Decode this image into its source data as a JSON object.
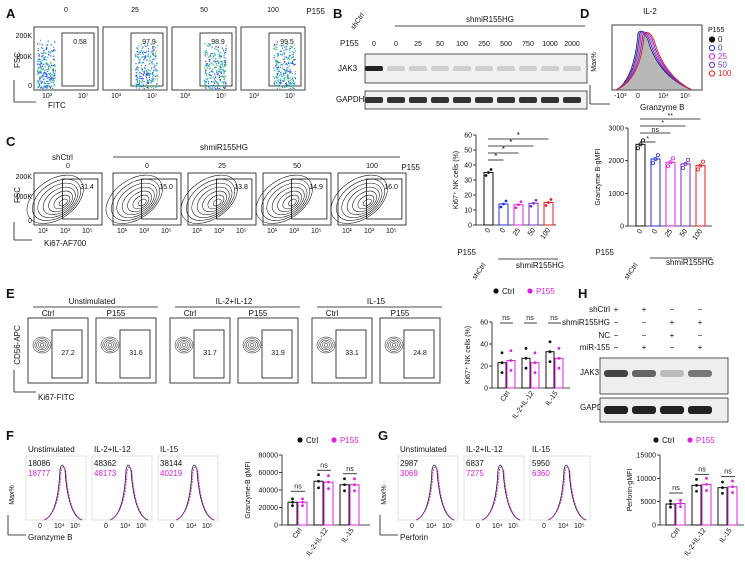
{
  "panel_labels": [
    "A",
    "B",
    "C",
    "D",
    "E",
    "F",
    "G",
    "H"
  ],
  "panelA": {
    "group_label": "P155",
    "doses": [
      "0",
      "25",
      "50",
      "100"
    ],
    "percents": [
      "0.58",
      "97.9",
      "98.9",
      "99.5"
    ],
    "y_ticks": [
      "200K",
      "100K",
      "0"
    ],
    "x_ticks": [
      "10³",
      "10⁷"
    ],
    "ylabel": "FSC",
    "xlabel": "FITC"
  },
  "panelB": {
    "shctrl": "shCtrl",
    "shmir": "shmiR155HG",
    "p155_label": "P155",
    "doses": [
      "0",
      "0",
      "25",
      "50",
      "100",
      "250",
      "500",
      "750",
      "1000",
      "2000"
    ],
    "rows": [
      "JAK3",
      "GAPDH"
    ]
  },
  "panelC": {
    "shctrl": "shCtrl",
    "shmir": "shmiR155HG",
    "p155_label": "P155",
    "doses": [
      "0",
      "0",
      "25",
      "50",
      "100"
    ],
    "percents": [
      "31.4",
      "15.0",
      "13.8",
      "14.9",
      "16.0"
    ],
    "ylabel": "FSC",
    "xlabel": "Ki67-AF700",
    "y_ticks": [
      "200K",
      "100K",
      "0"
    ],
    "x_ticks": [
      "10¹",
      "10³",
      "10⁵"
    ]
  },
  "panelD": {
    "title": "IL-2",
    "legend_title": "P155",
    "legend": [
      "0",
      "0",
      "25",
      "50",
      "100"
    ],
    "legend_colors": [
      "#111111",
      "#2233dd",
      "#e020e0",
      "#7030c0",
      "#e02020"
    ],
    "ylabel": "Max%",
    "xlabel": "Granzyme B",
    "hist_x_ticks": [
      "-10³",
      "0",
      "10⁴",
      "10⁵"
    ],
    "hist_y_ticks": [
      "100",
      "80",
      "60",
      "40",
      "20",
      "0"
    ]
  },
  "panelE": {
    "conditions": [
      "Unstimulated",
      "IL-2+IL-12",
      "IL-15"
    ],
    "sub": [
      "Ctrl",
      "P155"
    ],
    "percents": [
      "27.2",
      "31.6",
      "31.7",
      "31.9",
      "33.1",
      "24.8"
    ],
    "ylabel": "CD56-APC",
    "xlabel": "Ki67-FITC",
    "legend": [
      "Ctrl",
      "P155"
    ]
  },
  "panelF": {
    "conditions": [
      "Unstimulated",
      "IL-2+IL-12",
      "IL-15"
    ],
    "values_ctrl": [
      "18086",
      "48362",
      "38144"
    ],
    "values_p155": [
      "18777",
      "48173",
      "40219"
    ],
    "ylabel": "Max%",
    "xlabel": "Granzyme B",
    "x_ticks": [
      "0",
      "10⁴",
      "10⁵"
    ],
    "legend": [
      "Ctrl",
      "P155"
    ]
  },
  "panelG": {
    "conditions": [
      "Unstimulated",
      "IL-2+IL-12",
      "IL-15"
    ],
    "values_ctrl": [
      "2987",
      "6837",
      "5950"
    ],
    "values_p155": [
      "3069",
      "7275",
      "6360"
    ],
    "ylabel": "Max%",
    "xlabel": "Perforin",
    "x_ticks": [
      "0",
      "10⁴",
      "10⁵"
    ],
    "legend": [
      "Ctrl",
      "P155"
    ]
  },
  "panelH": {
    "row_labels": [
      "shCtrl",
      "shmiR155HG",
      "NC",
      "miR-155"
    ],
    "rows": [
      "JAK3",
      "GAPDH"
    ],
    "signs": [
      [
        "+",
        "+",
        "−",
        "−"
      ],
      [
        "−",
        "−",
        "+",
        "+"
      ],
      [
        "−",
        "−",
        "+",
        "−"
      ],
      [
        "−",
        "+",
        "−",
        "+"
      ]
    ]
  },
  "common": {
    "ns": "ns",
    "star": "*",
    "dstar": "**"
  },
  "chart_data": [
    {
      "type": "bar",
      "panel": "C",
      "ylabel": "Ki67⁺ NK cells (%)",
      "ylim": [
        0,
        60
      ],
      "yticks": [
        0,
        10,
        20,
        30,
        40,
        50,
        60
      ],
      "categories": [
        "0",
        "0",
        "25",
        "50",
        "100"
      ],
      "group_labels": [
        "shCtrl",
        "shmiR155HG"
      ],
      "p155_label": "P155",
      "values": [
        35,
        14,
        13.5,
        14.5,
        15
      ],
      "colors": [
        "#111111",
        "#2233dd",
        "#e020e0",
        "#7030c0",
        "#e02020"
      ],
      "significance": [
        "*",
        "*",
        "*",
        "*"
      ]
    },
    {
      "type": "bar",
      "panel": "D",
      "ylabel": "Granzyme B-gMFI",
      "ylim": [
        0,
        3000
      ],
      "yticks": [
        0,
        1000,
        2000,
        3000
      ],
      "categories": [
        "0",
        "0",
        "25",
        "50",
        "100"
      ],
      "group_labels": [
        "shCtrl",
        "shmiR155HG"
      ],
      "p155_label": "P155",
      "values": [
        2500,
        2050,
        1950,
        1900,
        1850
      ],
      "colors": [
        "#111111",
        "#2233dd",
        "#e020e0",
        "#7030c0",
        "#e02020"
      ],
      "significance": [
        "*",
        "ns",
        "*",
        "**"
      ]
    },
    {
      "type": "bar",
      "panel": "E",
      "ylabel": "Ki67⁺ NK cells (%)",
      "ylim": [
        0,
        60
      ],
      "yticks": [
        0,
        20,
        40,
        60
      ],
      "categories": [
        "Ctrl",
        "IL-2+IL-12",
        "IL-15"
      ],
      "series": [
        {
          "name": "Ctrl",
          "values": [
            23,
            27,
            33
          ]
        },
        {
          "name": "P155",
          "values": [
            25,
            23,
            27
          ]
        }
      ],
      "significance": [
        "ns",
        "ns",
        "ns"
      ]
    },
    {
      "type": "bar",
      "panel": "F",
      "ylabel": "Granzyme-B gMFI",
      "ylim": [
        0,
        80000
      ],
      "yticks": [
        0,
        20000,
        40000,
        60000,
        80000
      ],
      "categories": [
        "Ctrl",
        "IL-2+IL-12",
        "IL-15"
      ],
      "series": [
        {
          "name": "Ctrl",
          "values": [
            26000,
            50000,
            46000
          ]
        },
        {
          "name": "P155",
          "values": [
            26000,
            49000,
            46000
          ]
        }
      ],
      "significance": [
        "ns",
        "ns",
        "ns"
      ]
    },
    {
      "type": "bar",
      "panel": "G",
      "ylabel": "Perforin-gMFI",
      "ylim": [
        0,
        15000
      ],
      "yticks": [
        0,
        5000,
        10000,
        15000
      ],
      "categories": [
        "Ctrl",
        "IL-2+IL-12",
        "IL-15"
      ],
      "series": [
        {
          "name": "Ctrl",
          "values": [
            4500,
            8500,
            8000
          ]
        },
        {
          "name": "P155",
          "values": [
            4600,
            8700,
            8200
          ]
        }
      ],
      "significance": [
        "ns",
        "ns",
        "ns"
      ]
    }
  ]
}
